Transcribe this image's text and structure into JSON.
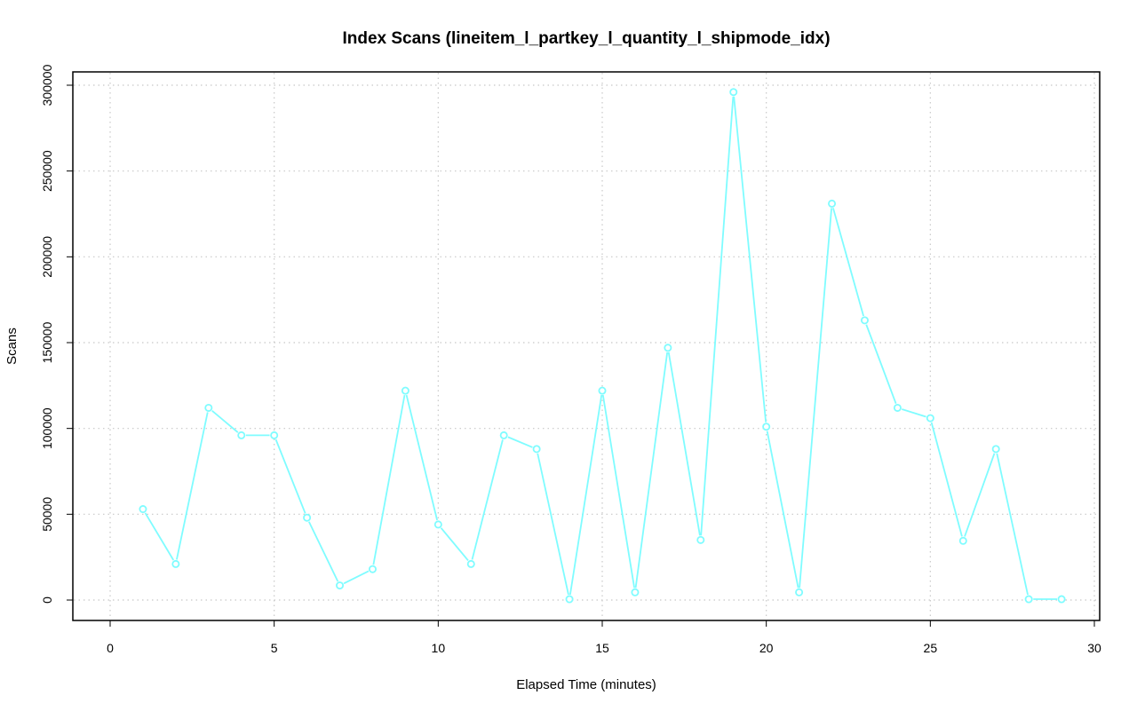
{
  "chart_data": {
    "type": "line",
    "title": "Index Scans (lineitem_l_partkey_l_quantity_l_shipmode_idx)",
    "xlabel": "Elapsed Time (minutes)",
    "ylabel": "Scans",
    "xlim": [
      0,
      30
    ],
    "ylim": [
      0,
      300000
    ],
    "x_ticks": [
      "0",
      "5",
      "10",
      "15",
      "20",
      "25",
      "30"
    ],
    "y_ticks": [
      "0",
      "50000",
      "100000",
      "150000",
      "200000",
      "250000",
      "300000"
    ],
    "grid": true,
    "series_color": "#7ffcff",
    "x": [
      1,
      2,
      3,
      4,
      5,
      6,
      7,
      8,
      9,
      10,
      11,
      12,
      13,
      14,
      15,
      16,
      17,
      18,
      19,
      20,
      21,
      22,
      23,
      24,
      25,
      26,
      27,
      28,
      29
    ],
    "y": [
      53000,
      21000,
      112000,
      96000,
      96000,
      48000,
      8500,
      18000,
      122000,
      44000,
      21000,
      96000,
      88000,
      500,
      122000,
      4500,
      147000,
      35000,
      296000,
      101000,
      4500,
      231000,
      163000,
      112000,
      106000,
      34500,
      88000,
      500,
      500
    ]
  }
}
